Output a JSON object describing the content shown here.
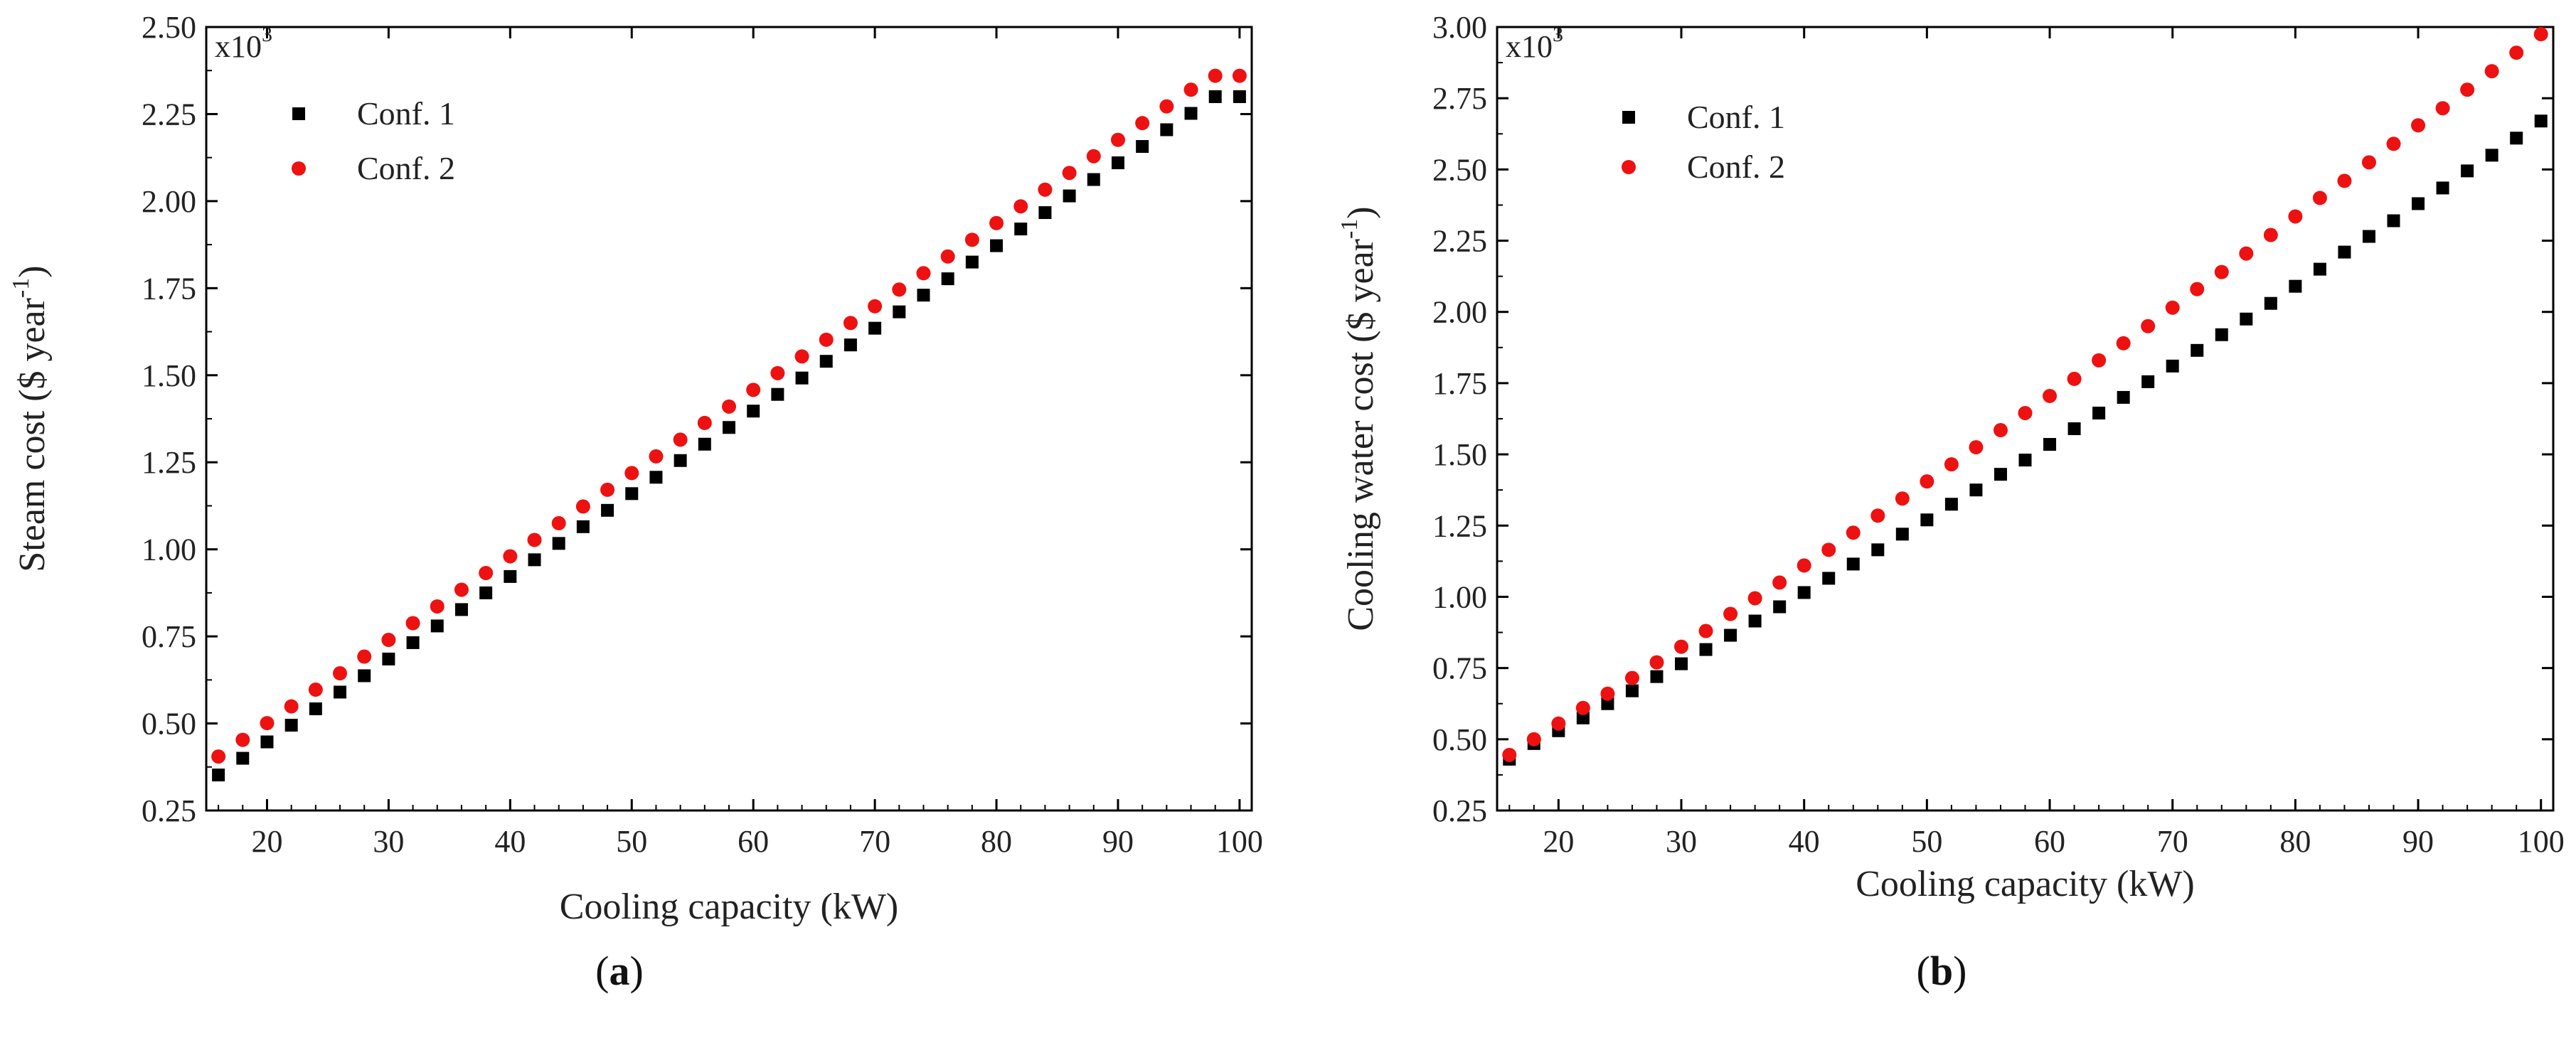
{
  "chart_data": [
    {
      "type": "scatter",
      "panel_label": "(a)",
      "panel_letter": "a",
      "xlabel": "Cooling capacity (kW)",
      "ylabel": "Steam cost ($ year",
      "ylabel_exp": "-1",
      "ylabel_close": ")",
      "y_multiplier": "x10",
      "y_multiplier_exp": "3",
      "xlim": [
        15,
        101
      ],
      "ylim": [
        0.25,
        2.5
      ],
      "x_ticks": [
        20,
        30,
        40,
        50,
        60,
        70,
        80,
        90,
        100
      ],
      "y_ticks": [
        0.25,
        0.5,
        0.75,
        1.0,
        1.25,
        1.5,
        1.75,
        2.0,
        2.25,
        2.5
      ],
      "y_tick_labels": [
        "0.25",
        "0.50",
        "0.75",
        "1.00",
        "1.25",
        "1.50",
        "1.75",
        "2.00",
        "2.25",
        "2.50"
      ],
      "legend_position": "top-left",
      "x": [
        16,
        18,
        20,
        22,
        24,
        26,
        28,
        30,
        32,
        34,
        36,
        38,
        40,
        42,
        44,
        46,
        48,
        50,
        52,
        54,
        56,
        58,
        60,
        62,
        64,
        66,
        68,
        70,
        72,
        74,
        76,
        78,
        80,
        82,
        84,
        86,
        88,
        90,
        92,
        94,
        96,
        98,
        100
      ],
      "series": [
        {
          "name": "Conf. 1",
          "marker": "square",
          "color": "#000000",
          "values": [
            0.352,
            0.4,
            0.447,
            0.495,
            0.542,
            0.59,
            0.637,
            0.685,
            0.732,
            0.78,
            0.827,
            0.875,
            0.922,
            0.97,
            1.017,
            1.065,
            1.112,
            1.16,
            1.207,
            1.255,
            1.302,
            1.35,
            1.397,
            1.445,
            1.492,
            1.54,
            1.587,
            1.635,
            1.682,
            1.73,
            1.777,
            1.825,
            1.872,
            1.92,
            1.967,
            2.015,
            2.062,
            2.11,
            2.157,
            2.205,
            2.252,
            2.3,
            2.3
          ]
        },
        {
          "name": "Conf. 2",
          "marker": "circle",
          "color": "#ee1111",
          "values": [
            0.405,
            0.453,
            0.501,
            0.549,
            0.597,
            0.644,
            0.692,
            0.74,
            0.788,
            0.836,
            0.884,
            0.932,
            0.98,
            1.027,
            1.075,
            1.123,
            1.171,
            1.219,
            1.267,
            1.315,
            1.363,
            1.41,
            1.458,
            1.506,
            1.554,
            1.602,
            1.65,
            1.698,
            1.746,
            1.793,
            1.841,
            1.889,
            1.937,
            1.985,
            2.033,
            2.081,
            2.129,
            2.176,
            2.224,
            2.272,
            2.32,
            2.36,
            2.36
          ]
        }
      ]
    },
    {
      "type": "scatter",
      "panel_label": "(b)",
      "panel_letter": "b",
      "xlabel": "Cooling capacity (kW)",
      "ylabel": "Cooling water cost ($ year",
      "ylabel_exp": "-1",
      "ylabel_close": ")",
      "y_multiplier": "x10",
      "y_multiplier_exp": "3",
      "xlim": [
        15,
        101
      ],
      "ylim": [
        0.25,
        3.0
      ],
      "x_ticks": [
        20,
        30,
        40,
        50,
        60,
        70,
        80,
        90,
        100
      ],
      "y_ticks": [
        0.25,
        0.5,
        0.75,
        1.0,
        1.25,
        1.5,
        1.75,
        2.0,
        2.25,
        2.5,
        2.75,
        3.0
      ],
      "y_tick_labels": [
        "0.25",
        "0.50",
        "0.75",
        "1.00",
        "1.25",
        "1.50",
        "1.75",
        "2.00",
        "2.25",
        "2.50",
        "2.75",
        "3.00"
      ],
      "legend_position": "top-left",
      "x": [
        16,
        18,
        20,
        22,
        24,
        26,
        28,
        30,
        32,
        34,
        36,
        38,
        40,
        42,
        44,
        46,
        48,
        50,
        52,
        54,
        56,
        58,
        60,
        62,
        64,
        66,
        68,
        70,
        72,
        74,
        76,
        78,
        80,
        82,
        84,
        86,
        88,
        90,
        92,
        94,
        96,
        98,
        100
      ],
      "series": [
        {
          "name": "Conf. 1",
          "marker": "square",
          "color": "#000000",
          "values": [
            0.43,
            0.485,
            0.53,
            0.575,
            0.625,
            0.67,
            0.72,
            0.765,
            0.815,
            0.865,
            0.915,
            0.965,
            1.015,
            1.065,
            1.115,
            1.165,
            1.22,
            1.27,
            1.325,
            1.375,
            1.43,
            1.48,
            1.535,
            1.59,
            1.645,
            1.7,
            1.755,
            1.81,
            1.865,
            1.92,
            1.975,
            2.03,
            2.09,
            2.15,
            2.21,
            2.265,
            2.32,
            2.38,
            2.435,
            2.495,
            2.55,
            2.61,
            2.67
          ]
        },
        {
          "name": "Conf. 2",
          "marker": "circle",
          "color": "#ee1111",
          "values": [
            0.445,
            0.5,
            0.555,
            0.61,
            0.66,
            0.715,
            0.77,
            0.825,
            0.88,
            0.94,
            0.995,
            1.05,
            1.11,
            1.165,
            1.225,
            1.285,
            1.345,
            1.405,
            1.465,
            1.525,
            1.585,
            1.645,
            1.705,
            1.765,
            1.83,
            1.89,
            1.95,
            2.015,
            2.08,
            2.14,
            2.205,
            2.27,
            2.335,
            2.4,
            2.46,
            2.525,
            2.59,
            2.655,
            2.715,
            2.78,
            2.845,
            2.91,
            2.975
          ]
        }
      ]
    }
  ]
}
